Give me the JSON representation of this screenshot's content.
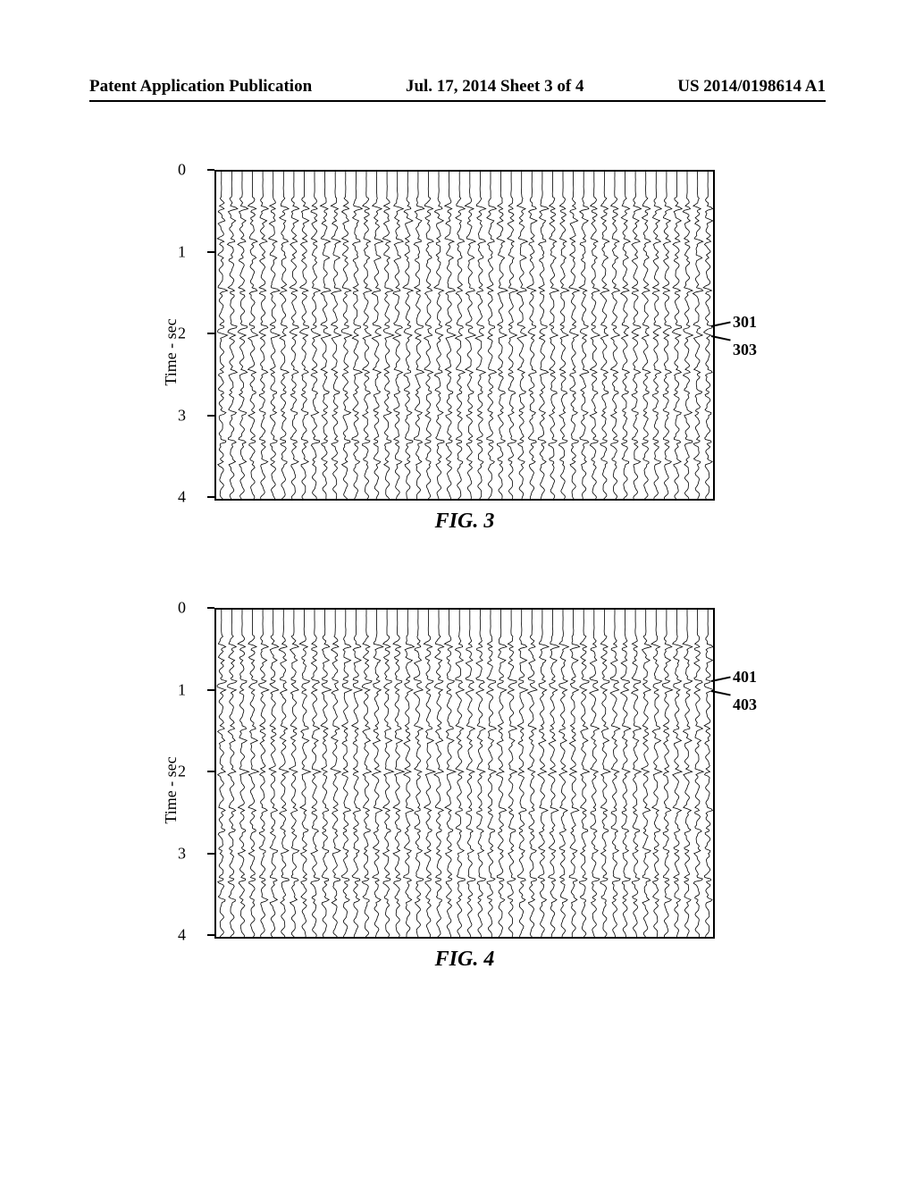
{
  "header": {
    "left": "Patent Application Publication",
    "center": "Jul. 17, 2014  Sheet 3 of 4",
    "right": "US 2014/0198614 A1"
  },
  "figures": [
    {
      "id": "fig3",
      "caption": "FIG. 3",
      "ylabel": "Time - sec",
      "yticks": [
        0,
        1,
        2,
        3,
        4
      ],
      "ylim": [
        0,
        4
      ],
      "n_traces": 48,
      "background_color": "#ffffff",
      "trace_color": "#000000",
      "trace_stroke_width": 0.8,
      "reflectors": [
        {
          "t": 0.45,
          "amp": 2.2
        },
        {
          "t": 0.6,
          "amp": 1.4
        },
        {
          "t": 0.85,
          "amp": 2.0
        },
        {
          "t": 1.05,
          "amp": 1.2
        },
        {
          "t": 1.45,
          "amp": 2.4
        },
        {
          "t": 1.9,
          "amp": 2.0
        },
        {
          "t": 2.0,
          "amp": 2.2
        },
        {
          "t": 2.45,
          "amp": 2.0
        },
        {
          "t": 2.7,
          "amp": 1.4
        },
        {
          "t": 2.95,
          "amp": 1.6
        },
        {
          "t": 3.3,
          "amp": 2.2
        },
        {
          "t": 3.55,
          "amp": 1.4
        }
      ],
      "noise_amp": 0.9,
      "noise_freq": 22,
      "callouts": [
        {
          "label": "301",
          "t": 1.9,
          "x_off": 24,
          "y_off": -4
        },
        {
          "label": "303",
          "t": 2.02,
          "x_off": 24,
          "y_off": 16
        }
      ]
    },
    {
      "id": "fig4",
      "caption": "FIG. 4",
      "ylabel": "Time - sec",
      "yticks": [
        0,
        1,
        2,
        3,
        4
      ],
      "ylim": [
        0,
        4
      ],
      "n_traces": 48,
      "background_color": "#ffffff",
      "trace_color": "#000000",
      "trace_stroke_width": 0.8,
      "reflectors": [
        {
          "t": 0.45,
          "amp": 2.2
        },
        {
          "t": 0.62,
          "amp": 1.4
        },
        {
          "t": 0.88,
          "amp": 2.2
        },
        {
          "t": 0.98,
          "amp": 2.0
        },
        {
          "t": 1.45,
          "amp": 1.8
        },
        {
          "t": 1.6,
          "amp": 1.4
        },
        {
          "t": 1.98,
          "amp": 2.2
        },
        {
          "t": 2.45,
          "amp": 1.8
        },
        {
          "t": 2.7,
          "amp": 1.4
        },
        {
          "t": 2.95,
          "amp": 1.6
        },
        {
          "t": 3.3,
          "amp": 2.2
        },
        {
          "t": 3.55,
          "amp": 1.4
        }
      ],
      "noise_amp": 0.9,
      "noise_freq": 22,
      "callouts": [
        {
          "label": "401",
          "t": 0.88,
          "x_off": 24,
          "y_off": -4
        },
        {
          "label": "403",
          "t": 1.0,
          "x_off": 24,
          "y_off": 16
        }
      ]
    }
  ]
}
